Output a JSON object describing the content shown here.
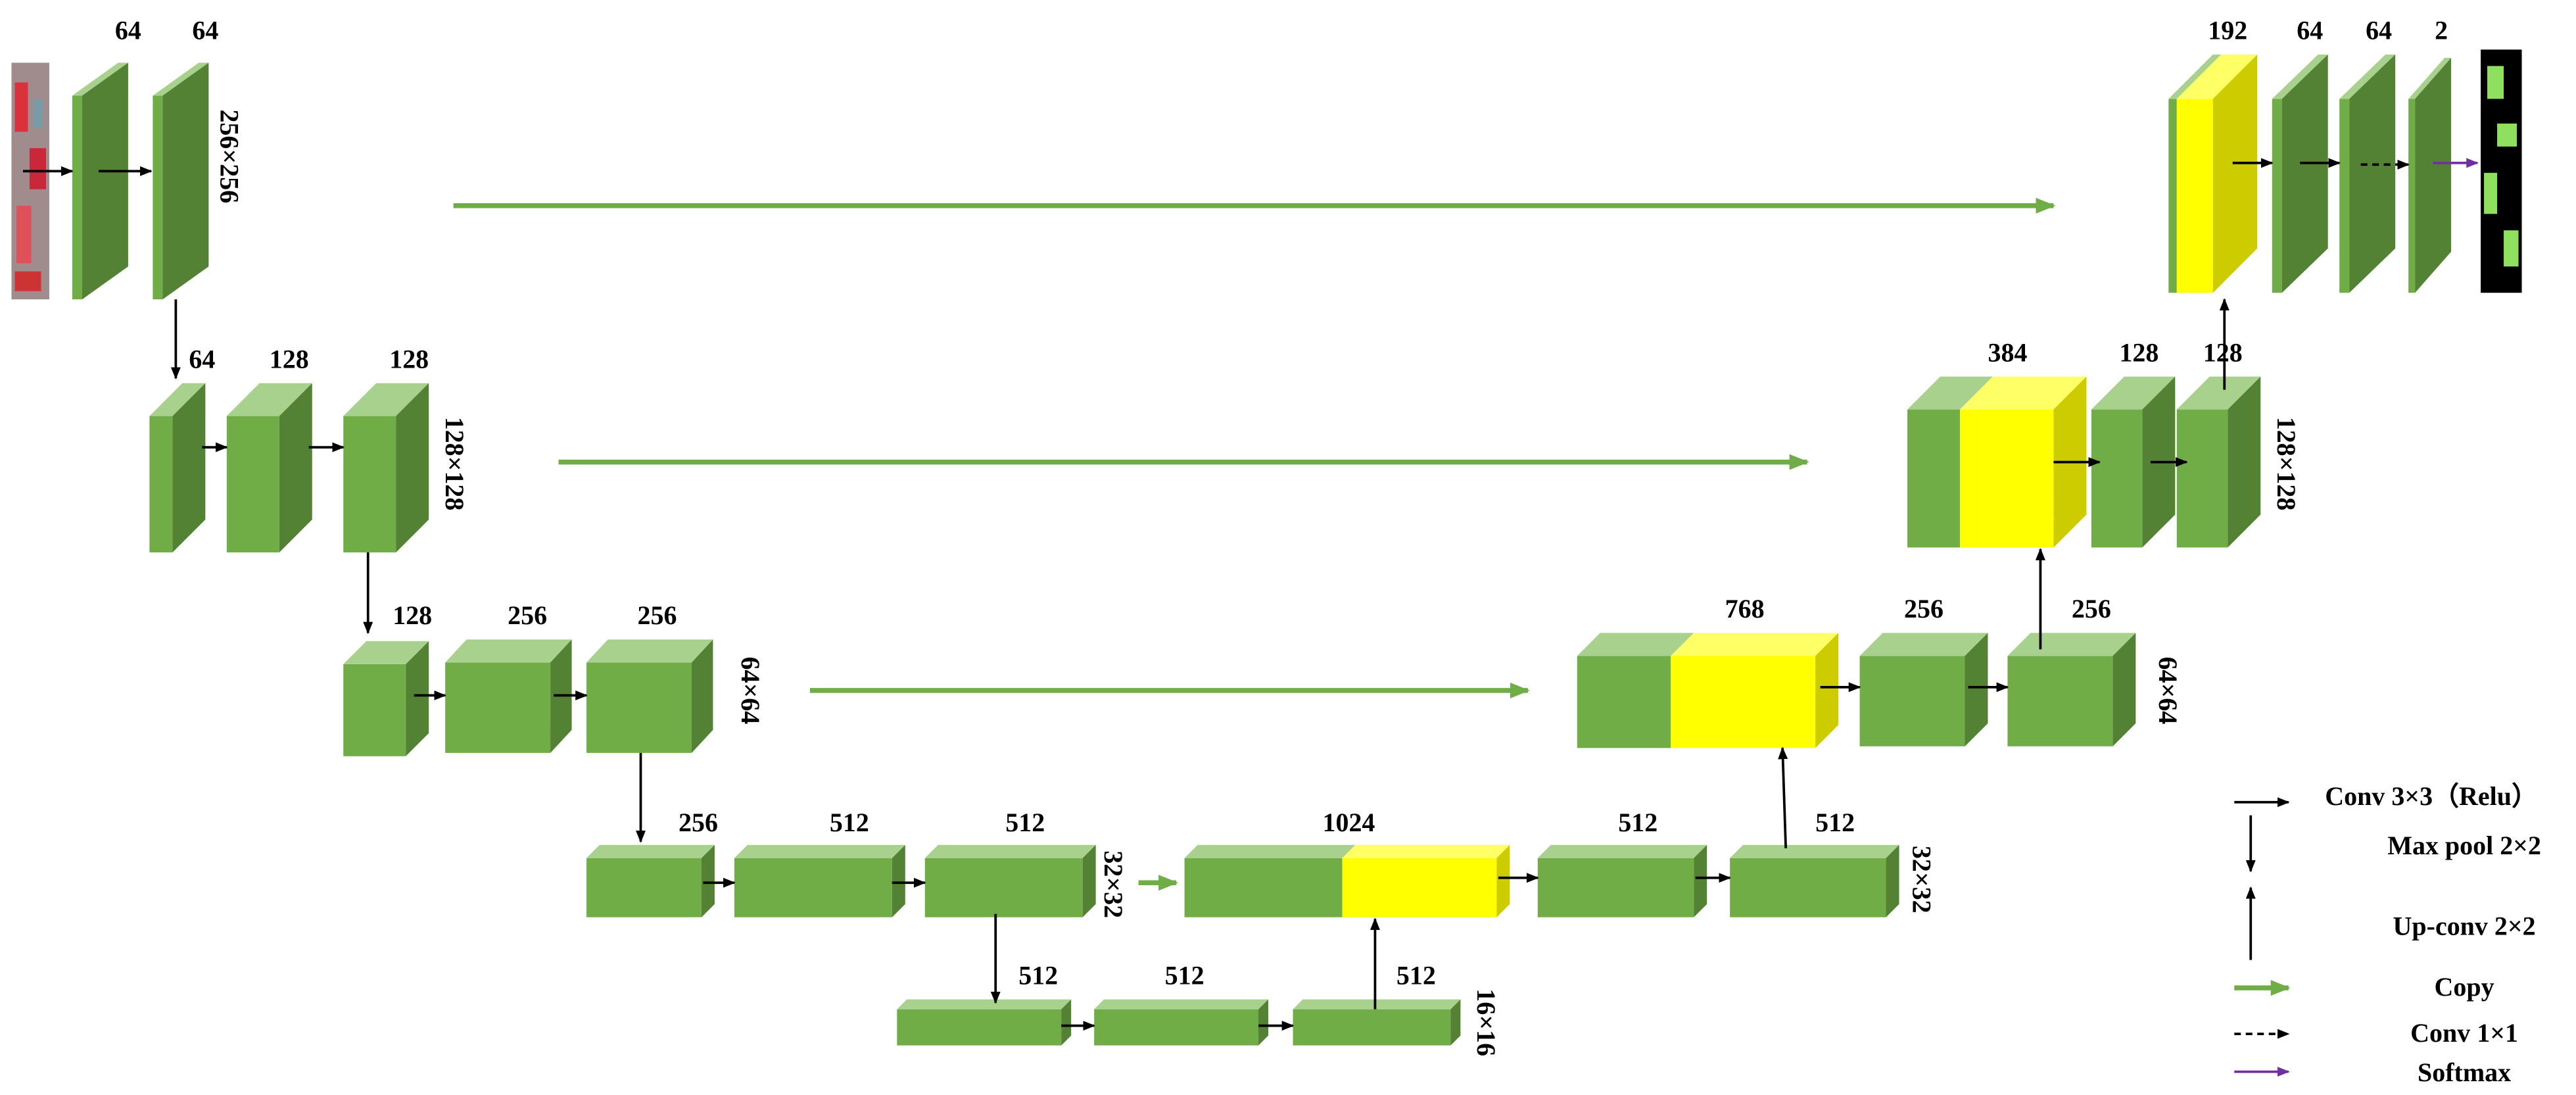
{
  "channels": [
    64,
    64,
    64,
    128,
    128,
    128,
    256,
    256,
    256,
    512,
    512,
    1024,
    512,
    512,
    512,
    512,
    512,
    768,
    256,
    256,
    384,
    128,
    128,
    192,
    64,
    64,
    2
  ],
  "sizes": [
    "256×256",
    "128×128",
    "64×64",
    "32×32",
    "16×16",
    "32×32",
    "64×64",
    "128×128"
  ],
  "legend": [
    "Conv 3×3（Relu）",
    "Max pool 2×2",
    "Up-conv 2×2",
    "Copy",
    "Conv 1×1",
    "Softmax"
  ]
}
